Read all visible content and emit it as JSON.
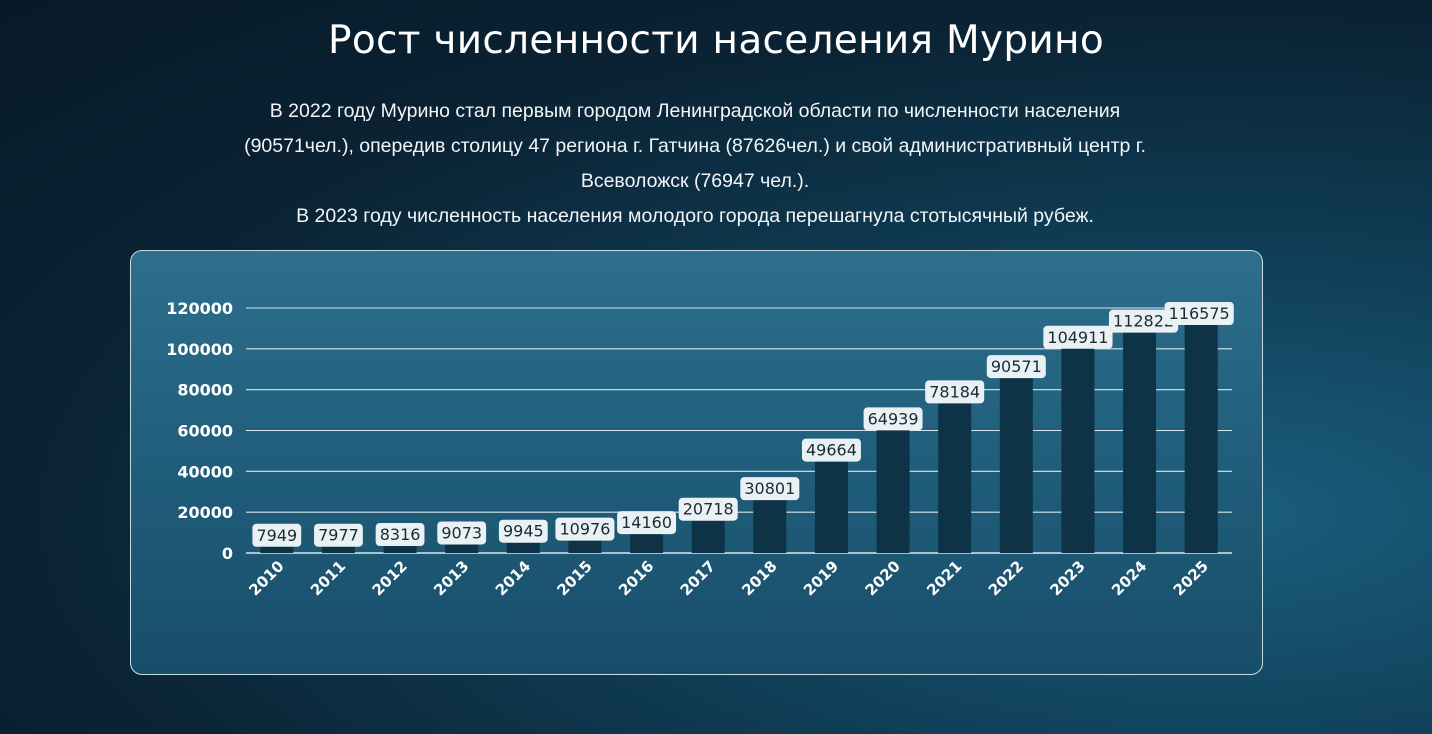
{
  "page": {
    "title": "Рост численности населения Мурино",
    "description": [
      "В 2022 году Мурино стал первым городом Ленинградской области по численности населения",
      "(90571чел.), опередив столицу 47 региона г. Гатчина (87626чел.) и свой административный центр г.",
      "Всеволожск (76947 чел.).",
      "В 2023 году численность населения молодого города перешагнула стотысячный рубеж."
    ]
  },
  "colors": {
    "bar": "#0e3347",
    "gridline": "#d6e6ee",
    "label_box": "#e9f1f4"
  },
  "chart_data": {
    "type": "bar",
    "categories": [
      "2010",
      "2011",
      "2012",
      "2013",
      "2014",
      "2015",
      "2016",
      "2017",
      "2018",
      "2019",
      "2020",
      "2021",
      "2022",
      "2023",
      "2024",
      "2025"
    ],
    "values": [
      7949,
      7977,
      8316,
      9073,
      9945,
      10976,
      14160,
      20718,
      30801,
      49664,
      64939,
      78184,
      90571,
      104911,
      112822,
      116575
    ],
    "ylim": [
      0,
      120000
    ],
    "yticks": [
      0,
      20000,
      40000,
      60000,
      80000,
      100000,
      120000
    ],
    "grid": true,
    "data_labels": true
  }
}
